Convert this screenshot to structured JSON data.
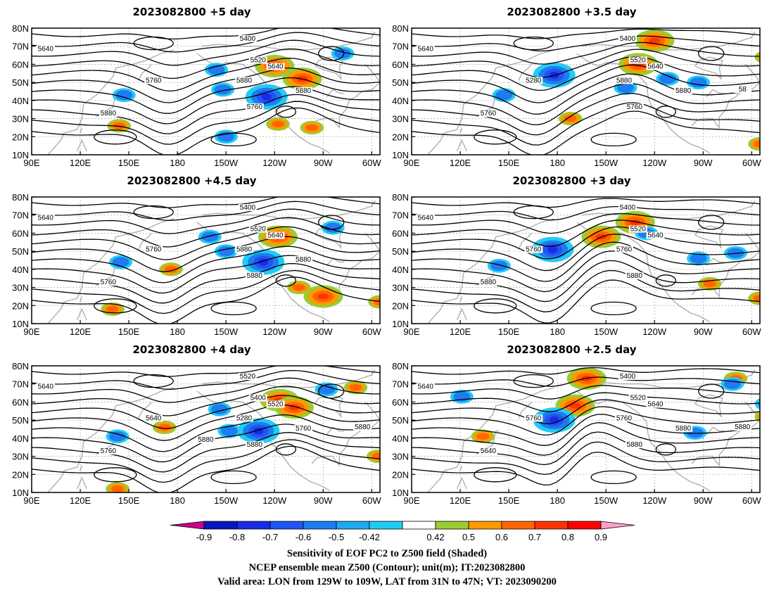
{
  "panels": [
    {
      "title": "2023082800 +5 day",
      "contour_labels": [
        "5400",
        "5520",
        "5640",
        "5640",
        "5760",
        "5880",
        "5880",
        "5760",
        "5880"
      ],
      "positive_blobs": [
        {
          "lon": -120,
          "lat": 59
        },
        {
          "lon": -103,
          "lat": 52
        },
        {
          "lon": -118,
          "lat": 27
        },
        {
          "lon": -97,
          "lat": 25
        },
        {
          "lon": 144,
          "lat": 26
        }
      ],
      "negative_blobs": [
        {
          "lon": -125,
          "lat": 42
        },
        {
          "lon": -78,
          "lat": 66
        },
        {
          "lon": 147,
          "lat": 43
        },
        {
          "lon": -150,
          "lat": 20
        },
        {
          "lon": -156,
          "lat": 57
        },
        {
          "lon": -152,
          "lat": 46
        }
      ],
      "ridge": {
        "lon": -108,
        "lat": 57
      },
      "trough": {
        "lon": 175,
        "lat": 47
      }
    },
    {
      "title": "2023082800 +3.5 day",
      "contour_labels": [
        "5400",
        "5520",
        "5640",
        "5640",
        "5280",
        "5880",
        "5760",
        "5760",
        "5880",
        "58"
      ],
      "positive_blobs": [
        {
          "lon": -130,
          "lat": 60
        },
        {
          "lon": -120,
          "lat": 73
        },
        {
          "lon": -55,
          "lat": 16
        },
        {
          "lon": -51,
          "lat": 64
        },
        {
          "lon": -172,
          "lat": 30
        }
      ],
      "negative_blobs": [
        {
          "lon": 178,
          "lat": 54
        },
        {
          "lon": 147,
          "lat": 43
        },
        {
          "lon": -138,
          "lat": 47
        },
        {
          "lon": -93,
          "lat": 50
        },
        {
          "lon": -112,
          "lat": 52
        }
      ],
      "ridge": {
        "lon": -133,
        "lat": 57
      },
      "trough": {
        "lon": 168,
        "lat": 47
      }
    },
    {
      "title": "2023082800 +4.5 day",
      "contour_labels": [
        "5400",
        "5520",
        "5640",
        "5640",
        "5760",
        "5880",
        "5760",
        "5880",
        "5880"
      ],
      "positive_blobs": [
        {
          "lon": -118,
          "lat": 58
        },
        {
          "lon": -90,
          "lat": 25
        },
        {
          "lon": -105,
          "lat": 30
        },
        {
          "lon": 176,
          "lat": 40
        },
        {
          "lon": -55,
          "lat": 22
        },
        {
          "lon": 140,
          "lat": 18
        }
      ],
      "negative_blobs": [
        {
          "lon": -127,
          "lat": 44
        },
        {
          "lon": -84,
          "lat": 63
        },
        {
          "lon": 145,
          "lat": 44
        },
        {
          "lon": -150,
          "lat": 50
        },
        {
          "lon": -160,
          "lat": 58
        }
      ],
      "ridge": {
        "lon": -110,
        "lat": 58
      },
      "trough": {
        "lon": 172,
        "lat": 48
      }
    },
    {
      "title": "2023082800 +3 day",
      "contour_labels": [
        "5400",
        "5520",
        "5640",
        "5640",
        "5760",
        "5760",
        "5880",
        "5880"
      ],
      "positive_blobs": [
        {
          "lon": -153,
          "lat": 58
        },
        {
          "lon": -132,
          "lat": 66
        },
        {
          "lon": -86,
          "lat": 32
        },
        {
          "lon": -55,
          "lat": 24
        }
      ],
      "negative_blobs": [
        {
          "lon": 177,
          "lat": 51
        },
        {
          "lon": 144,
          "lat": 42
        },
        {
          "lon": -93,
          "lat": 46
        },
        {
          "lon": -70,
          "lat": 49
        },
        {
          "lon": -125,
          "lat": 60
        }
      ],
      "ridge": {
        "lon": -146,
        "lat": 60
      },
      "trough": {
        "lon": 175,
        "lat": 47
      }
    },
    {
      "title": "2023082800 +4 day",
      "contour_labels": [
        "5520",
        "5400",
        "5520",
        "5640",
        "5640",
        "5280",
        "5760",
        "5880",
        "5760",
        "5880",
        "5880"
      ],
      "positive_blobs": [
        {
          "lon": -117,
          "lat": 61
        },
        {
          "lon": -108,
          "lat": 57
        },
        {
          "lon": -56,
          "lat": 30
        },
        {
          "lon": -70,
          "lat": 68
        },
        {
          "lon": 172,
          "lat": 46
        },
        {
          "lon": 143,
          "lat": 12
        }
      ],
      "negative_blobs": [
        {
          "lon": -130,
          "lat": 44
        },
        {
          "lon": -88,
          "lat": 67
        },
        {
          "lon": -154,
          "lat": 56
        },
        {
          "lon": 143,
          "lat": 41
        },
        {
          "lon": -148,
          "lat": 44
        }
      ],
      "ridge": {
        "lon": -112,
        "lat": 60
      },
      "trough": {
        "lon": 172,
        "lat": 49
      }
    },
    {
      "title": "2023082800 +2.5 day",
      "contour_labels": [
        "5400",
        "5520",
        "5640",
        "5640",
        "5760",
        "5760",
        "5640",
        "5880",
        "5880",
        "5880"
      ],
      "positive_blobs": [
        {
          "lon": -169,
          "lat": 58
        },
        {
          "lon": -162,
          "lat": 73
        },
        {
          "lon": -51,
          "lat": 52
        },
        {
          "lon": 134,
          "lat": 41
        },
        {
          "lon": -70,
          "lat": 73
        }
      ],
      "negative_blobs": [
        {
          "lon": 178,
          "lat": 50
        },
        {
          "lon": -95,
          "lat": 43
        },
        {
          "lon": -51,
          "lat": 59
        },
        {
          "lon": -72,
          "lat": 70
        },
        {
          "lon": 121,
          "lat": 63
        }
      ],
      "ridge": {
        "lon": -160,
        "lat": 60
      },
      "trough": {
        "lon": 178,
        "lat": 48
      }
    }
  ],
  "map": {
    "lon_ticks": [
      "90E",
      "120E",
      "150E",
      "180",
      "150W",
      "120W",
      "90W",
      "60W"
    ],
    "lat_ticks": [
      "10N",
      "20N",
      "30N",
      "40N",
      "50N",
      "60N",
      "70N",
      "80N"
    ],
    "lon_range_east": [
      90,
      305
    ],
    "lat_range": [
      10,
      80
    ]
  },
  "colorbar": {
    "labels": [
      "-0.9",
      "-0.8",
      "-0.7",
      "-0.6",
      "-0.5",
      "-0.42",
      "0.42",
      "0.5",
      "0.6",
      "0.7",
      "0.8",
      "0.9"
    ],
    "colors": [
      "#0a14bf",
      "#1a2ae6",
      "#1f54f5",
      "#1e7cf0",
      "#20a8f2",
      "#22cbf5",
      "#ffffff",
      "#99cc33",
      "#ff9900",
      "#ff6600",
      "#ff3300",
      "#ff0000"
    ],
    "low_extend_color": "#c8008c",
    "high_extend_color": "#ffa0c8"
  },
  "footer": {
    "line1": "Sensitivity of EOF PC2 to Z500 field (Shaded)",
    "line2": "NCEP ensemble mean Z500 (Contour); unit(m); IT:2023082800",
    "line3": "Valid area: LON from 129W to 109W, LAT from 31N to 47N; VT: 2023090200"
  }
}
